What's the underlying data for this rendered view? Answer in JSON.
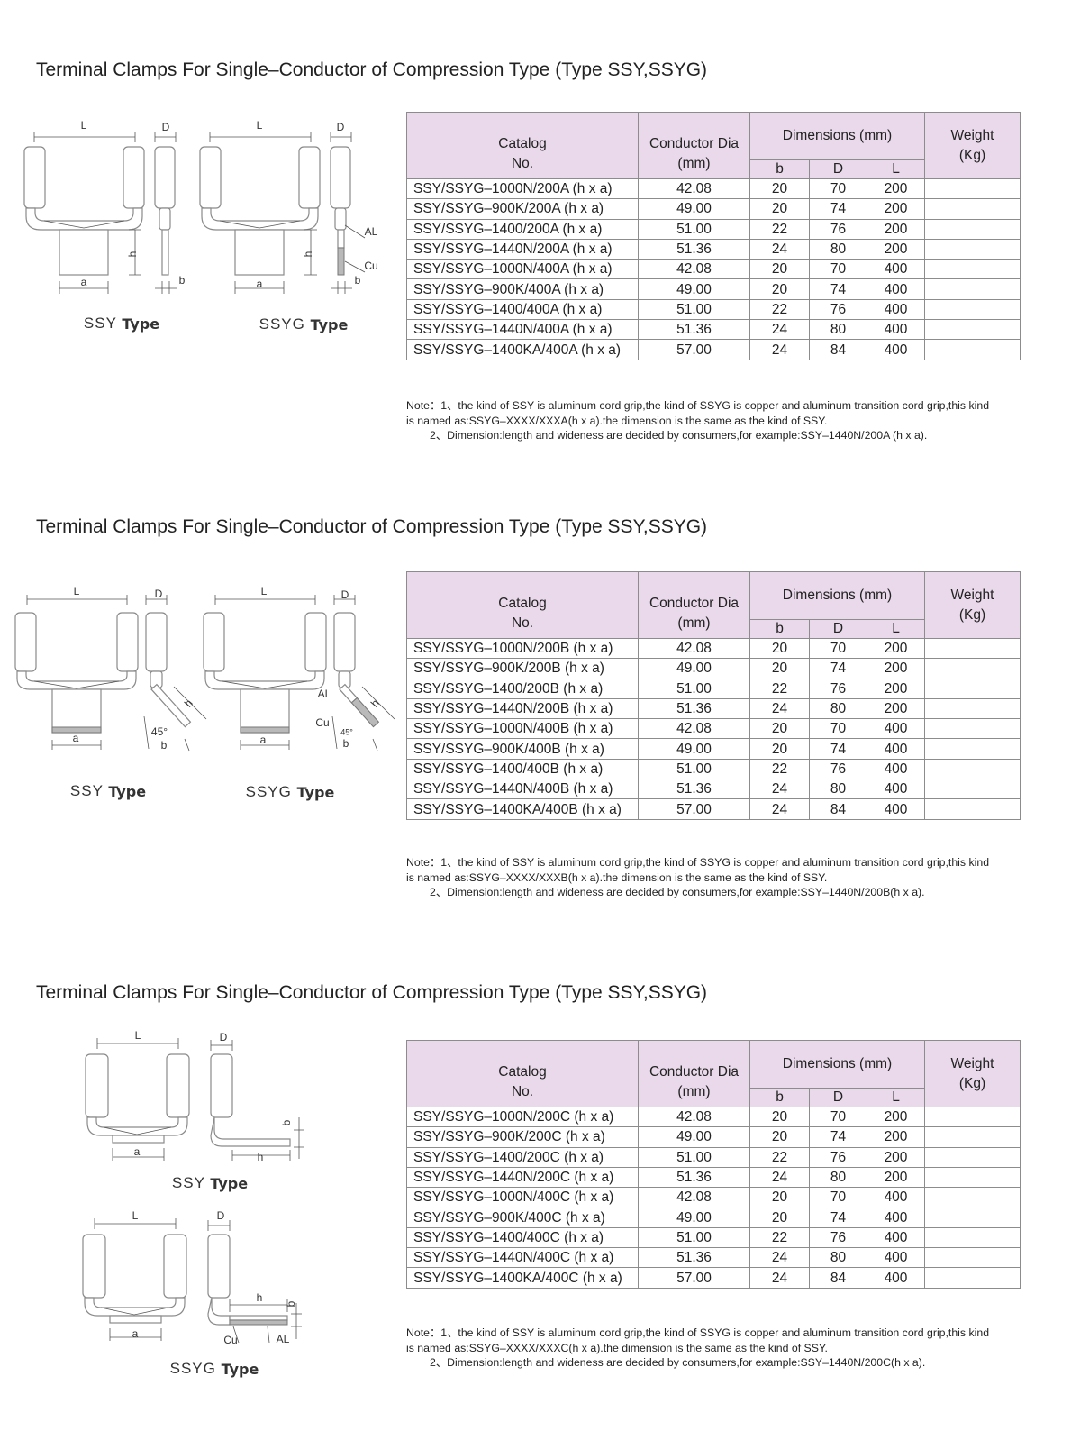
{
  "sections": [
    {
      "title": "Terminal Clamps For Single–Conductor of Compression Type (Type SSY,SSYG)",
      "diagrams": [
        {
          "name": "SSY",
          "word": "Type",
          "labels": [
            "L",
            "D",
            "h",
            "a",
            "b"
          ]
        },
        {
          "name": "SSYG",
          "word": "Type",
          "labels": [
            "L",
            "D",
            "h",
            "a",
            "b",
            "AL",
            "Cu"
          ]
        }
      ],
      "table": {
        "header": {
          "catalog": [
            "Catalog",
            "No."
          ],
          "conductor": [
            "Conductor Dia",
            "(mm)"
          ],
          "dimensions": "Dimensions (mm)",
          "sub": [
            "b",
            "D",
            "L"
          ],
          "weight": [
            "Weight",
            "(Kg)"
          ]
        },
        "rows": [
          [
            "SSY/SSYG–1000N/200A (h x a)",
            "42.08",
            "20",
            "70",
            "200"
          ],
          [
            "SSY/SSYG–900K/200A (h x a)",
            "49.00",
            "20",
            "74",
            "200"
          ],
          [
            "SSY/SSYG–1400/200A (h x a)",
            "51.00",
            "22",
            "76",
            "200"
          ],
          [
            "SSY/SSYG–1440N/200A (h x a)",
            "51.36",
            "24",
            "80",
            "200"
          ],
          [
            "SSY/SSYG–1000N/400A (h x a)",
            "42.08",
            "20",
            "70",
            "400"
          ],
          [
            "SSY/SSYG–900K/400A (h x a)",
            "49.00",
            "20",
            "74",
            "400"
          ],
          [
            "SSY/SSYG–1400/400A (h x a)",
            "51.00",
            "22",
            "76",
            "400"
          ],
          [
            "SSY/SSYG–1440N/400A (h x a)",
            "51.36",
            "24",
            "80",
            "400"
          ],
          [
            "SSY/SSYG–1400KA/400A (h x a)",
            "57.00",
            "24",
            "84",
            "400"
          ]
        ]
      },
      "note": [
        "Note：1、the kind of SSY is aluminum cord grip,the kind of SSYG is copper and aluminum transition cord grip,this kind",
        "is named as:SSYG–XXXX/XXXA(h x a).the dimension is the same as the kind of SSY.",
        "2、Dimension:length and wideness are decided by consumers,for example:SSY–1440N/200A (h x a)."
      ]
    },
    {
      "title": "Terminal Clamps For Single–Conductor of Compression Type (Type SSY,SSYG)",
      "diagrams": [
        {
          "name": "SSY",
          "word": "Type",
          "labels": [
            "L",
            "D",
            "h",
            "45°",
            "b",
            "a"
          ]
        },
        {
          "name": "SSYG",
          "word": "Type",
          "labels": [
            "L",
            "D",
            "AL",
            "Cu",
            "h",
            "45°",
            "b",
            "a"
          ]
        }
      ],
      "table": {
        "header": {
          "catalog": [
            "Catalog",
            "No."
          ],
          "conductor": [
            "Conductor Dia",
            "(mm)"
          ],
          "dimensions": "Dimensions (mm)",
          "sub": [
            "b",
            "D",
            "L"
          ],
          "weight": [
            "Weight",
            "(Kg)"
          ]
        },
        "rows": [
          [
            "SSY/SSYG–1000N/200B (h x a)",
            "42.08",
            "20",
            "70",
            "200"
          ],
          [
            "SSY/SSYG–900K/200B (h x a)",
            "49.00",
            "20",
            "74",
            "200"
          ],
          [
            "SSY/SSYG–1400/200B (h x a)",
            "51.00",
            "22",
            "76",
            "200"
          ],
          [
            "SSY/SSYG–1440N/200B (h x a)",
            "51.36",
            "24",
            "80",
            "200"
          ],
          [
            "SSY/SSYG–1000N/400B (h x a)",
            "42.08",
            "20",
            "70",
            "400"
          ],
          [
            "SSY/SSYG–900K/400B (h x a)",
            "49.00",
            "20",
            "74",
            "400"
          ],
          [
            "SSY/SSYG–1400/400B (h x a)",
            "51.00",
            "22",
            "76",
            "400"
          ],
          [
            "SSY/SSYG–1440N/400B (h x a)",
            "51.36",
            "24",
            "80",
            "400"
          ],
          [
            "SSY/SSYG–1400KA/400B (h x a)",
            "57.00",
            "24",
            "84",
            "400"
          ]
        ]
      },
      "note": [
        "Note：1、the kind of SSY is aluminum cord grip,the kind of SSYG is copper and aluminum transition cord grip,this kind",
        "is named as:SSYG–XXXX/XXXB(h x a).the dimension is the same as the kind of SSY.",
        "2、Dimension:length and wideness are decided by consumers,for example:SSY–1440N/200B(h x a)."
      ]
    },
    {
      "title": "Terminal Clamps For Single–Conductor of Compression Type (Type SSY,SSYG)",
      "diagrams": [
        {
          "name": "SSY",
          "word": "Type",
          "labels": [
            "L",
            "D",
            "b",
            "a",
            "h"
          ]
        },
        {
          "name": "SSYG",
          "word": "Type",
          "labels": [
            "L",
            "D",
            "h",
            "b",
            "a",
            "Cu",
            "AL"
          ]
        }
      ],
      "table": {
        "header": {
          "catalog": [
            "Catalog",
            "No."
          ],
          "conductor": [
            "Conductor Dia",
            "(mm)"
          ],
          "dimensions": "Dimensions (mm)",
          "sub": [
            "b",
            "D",
            "L"
          ],
          "weight": [
            "Weight",
            "(Kg)"
          ]
        },
        "rows": [
          [
            "SSY/SSYG–1000N/200C (h x a)",
            "42.08",
            "20",
            "70",
            "200"
          ],
          [
            "SSY/SSYG–900K/200C (h x a)",
            "49.00",
            "20",
            "74",
            "200"
          ],
          [
            "SSY/SSYG–1400/200C (h x a)",
            "51.00",
            "22",
            "76",
            "200"
          ],
          [
            "SSY/SSYG–1440N/200C (h x a)",
            "51.36",
            "24",
            "80",
            "200"
          ],
          [
            "SSY/SSYG–1000N/400C (h x a)",
            "42.08",
            "20",
            "70",
            "400"
          ],
          [
            "SSY/SSYG–900K/400C (h x a)",
            "49.00",
            "20",
            "74",
            "400"
          ],
          [
            "SSY/SSYG–1400/400C (h x a)",
            "51.00",
            "22",
            "76",
            "400"
          ],
          [
            "SSY/SSYG–1440N/400C (h x a)",
            "51.36",
            "24",
            "80",
            "400"
          ],
          [
            "SSY/SSYG–1400KA/400C (h x a)",
            "57.00",
            "24",
            "84",
            "400"
          ]
        ]
      },
      "note": [
        "Note：1、the kind of SSY is aluminum cord grip,the kind of SSYG is copper and aluminum transition cord grip,this kind",
        "is named as:SSYG–XXXX/XXXC(h x a).the dimension is the same as the kind of SSY.",
        "2、Dimension:length and wideness are decided by consumers,for example:SSY–1440N/200C(h x a)."
      ]
    }
  ]
}
